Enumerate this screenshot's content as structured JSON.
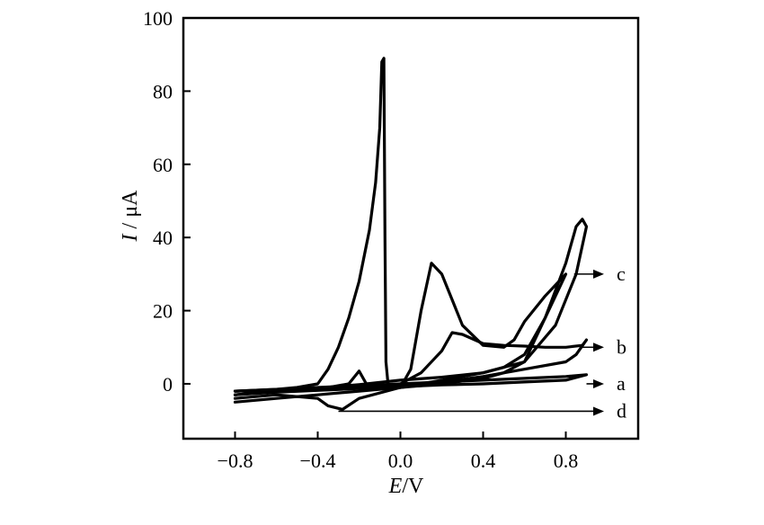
{
  "chart_data": {
    "type": "line",
    "title": "",
    "xlabel": {
      "italic": "E",
      "rest": "/V"
    },
    "ylabel": {
      "italic": "I",
      "rest": " / μA"
    },
    "xlim": [
      -1.05,
      1.15
    ],
    "ylim": [
      -15,
      100
    ],
    "xticks": [
      -0.8,
      -0.4,
      0.0,
      0.4,
      0.8
    ],
    "xtick_labels": [
      "−0.8",
      "−0.4",
      "0.0",
      "0.4",
      "0.8"
    ],
    "yticks": [
      0,
      20,
      40,
      60,
      80,
      100
    ],
    "ytick_labels": [
      "0",
      "20",
      "40",
      "60",
      "80",
      "100"
    ],
    "grid": false,
    "series": [
      {
        "name": "a",
        "points": [
          [
            -0.8,
            -2
          ],
          [
            -0.6,
            -1.5
          ],
          [
            -0.4,
            -1
          ],
          [
            -0.2,
            -0.5
          ],
          [
            0.0,
            0
          ],
          [
            0.2,
            0.5
          ],
          [
            0.4,
            1
          ],
          [
            0.6,
            1.5
          ],
          [
            0.8,
            2
          ],
          [
            0.9,
            2.5
          ],
          [
            0.8,
            1
          ],
          [
            0.6,
            0.5
          ],
          [
            0.4,
            0
          ],
          [
            0.2,
            -0.3
          ],
          [
            0.0,
            -0.8
          ],
          [
            -0.2,
            -1.3
          ],
          [
            -0.4,
            -1.8
          ],
          [
            -0.6,
            -2.3
          ],
          [
            -0.8,
            -3
          ]
        ],
        "label_point": [
          0.9,
          0
        ],
        "label_y": 0
      },
      {
        "name": "b",
        "points": [
          [
            -0.8,
            -3
          ],
          [
            -0.6,
            -2
          ],
          [
            -0.4,
            -1.5
          ],
          [
            -0.2,
            -1
          ],
          [
            0.0,
            0
          ],
          [
            0.1,
            3
          ],
          [
            0.2,
            9
          ],
          [
            0.25,
            14
          ],
          [
            0.3,
            13.5
          ],
          [
            0.4,
            11
          ],
          [
            0.5,
            10.5
          ],
          [
            0.6,
            10.3
          ],
          [
            0.7,
            10
          ],
          [
            0.8,
            10
          ],
          [
            0.88,
            10.5
          ],
          [
            0.9,
            12
          ],
          [
            0.85,
            8
          ],
          [
            0.8,
            6
          ],
          [
            0.6,
            4
          ],
          [
            0.4,
            2
          ],
          [
            0.2,
            0.5
          ],
          [
            0.0,
            -1
          ],
          [
            -0.2,
            -2
          ],
          [
            -0.4,
            -3
          ],
          [
            -0.6,
            -4
          ],
          [
            -0.8,
            -5
          ]
        ],
        "label_point": [
          0.87,
          10
        ],
        "label_y": 10
      },
      {
        "name": "c",
        "points": [
          [
            -0.8,
            -2
          ],
          [
            -0.6,
            -1.8
          ],
          [
            -0.4,
            -1.2
          ],
          [
            -0.2,
            -0.2
          ],
          [
            0.0,
            1
          ],
          [
            0.2,
            1.8
          ],
          [
            0.4,
            3
          ],
          [
            0.5,
            4.5
          ],
          [
            0.6,
            8
          ],
          [
            0.7,
            18
          ],
          [
            0.8,
            33
          ],
          [
            0.85,
            43
          ],
          [
            0.88,
            45
          ],
          [
            0.9,
            43
          ],
          [
            0.85,
            30
          ],
          [
            0.75,
            16
          ],
          [
            0.6,
            6
          ],
          [
            0.5,
            3
          ],
          [
            0.4,
            1.5
          ],
          [
            0.2,
            0
          ],
          [
            0.0,
            -1
          ],
          [
            -0.15,
            -1.5
          ],
          [
            -0.2,
            3.5
          ],
          [
            -0.25,
            0
          ],
          [
            -0.4,
            -1.5
          ],
          [
            -0.6,
            -2
          ],
          [
            -0.8,
            -3
          ]
        ],
        "label_point": [
          0.84,
          30
        ],
        "label_y": 30
      },
      {
        "name": "d",
        "points": [
          [
            -0.8,
            -2
          ],
          [
            -0.6,
            -1.5
          ],
          [
            -0.5,
            -1
          ],
          [
            -0.4,
            0
          ],
          [
            -0.35,
            4
          ],
          [
            -0.3,
            10
          ],
          [
            -0.25,
            18
          ],
          [
            -0.2,
            28
          ],
          [
            -0.15,
            42
          ],
          [
            -0.12,
            55
          ],
          [
            -0.1,
            70
          ],
          [
            -0.09,
            88
          ],
          [
            -0.08,
            89
          ],
          [
            -0.075,
            40
          ],
          [
            -0.07,
            6
          ],
          [
            -0.06,
            0
          ],
          [
            0.0,
            -1
          ],
          [
            0.05,
            4
          ],
          [
            0.1,
            20
          ],
          [
            0.15,
            33
          ],
          [
            0.2,
            30
          ],
          [
            0.3,
            16
          ],
          [
            0.4,
            10.5
          ],
          [
            0.5,
            10
          ],
          [
            0.55,
            12
          ],
          [
            0.6,
            17
          ],
          [
            0.7,
            24
          ],
          [
            0.8,
            30
          ],
          [
            0.6,
            6
          ],
          [
            0.4,
            3
          ],
          [
            0.2,
            1
          ],
          [
            0.0,
            -1
          ],
          [
            -0.2,
            -4
          ],
          [
            -0.28,
            -7
          ],
          [
            -0.35,
            -6
          ],
          [
            -0.4,
            -4
          ],
          [
            -0.6,
            -3
          ],
          [
            -0.8,
            -4
          ]
        ],
        "label_point": [
          -0.3,
          -7.5
        ],
        "label_y": -7.5
      }
    ]
  }
}
